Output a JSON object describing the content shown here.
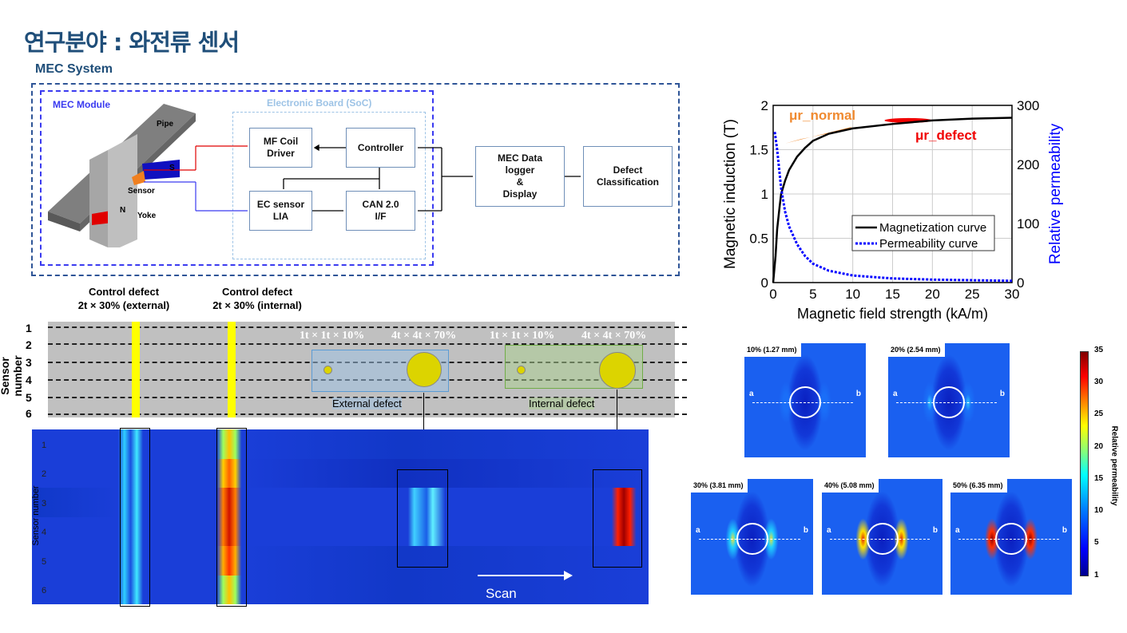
{
  "title": "연구분야 : 와전류 센서",
  "system": {
    "label": "MEC System",
    "module_label": "MEC Module",
    "board_label": "Electronic Board (SoC)",
    "blocks": {
      "mf_coil": "MF Coil\nDriver",
      "controller": "Controller",
      "ec_sensor": "EC sensor\nLIA",
      "can": "CAN 2.0\nI/F",
      "logger": "MEC Data\nlogger\n&\nDisplay",
      "classification": "Defect\nClassification"
    },
    "model_labels": {
      "pipe": "Pipe",
      "sensor": "Sensor",
      "yoke": "Yoke",
      "n": "N",
      "s": "S"
    }
  },
  "defect_layout": {
    "control_external": "Control defect\n2t × 30% (external)",
    "control_internal": "Control defect\n2t × 30% (internal)",
    "sensor_axis_label": "Sensor number",
    "sensors": [
      "1",
      "2",
      "3",
      "4",
      "5",
      "6"
    ],
    "sizes": [
      "1t × 1t × 10%",
      "4t × 4t × 70%",
      "1t × 1t × 10%",
      "4t × 4t × 70%"
    ],
    "external_label": "External defect",
    "internal_label": "Internal defect"
  },
  "scan_map": {
    "ylabel": "Sensor number",
    "rows": [
      "1",
      "2",
      "3",
      "4",
      "5",
      "6"
    ],
    "scan_label": "Scan"
  },
  "chart_data": {
    "type": "line",
    "xlabel": "Magnetic field strength (kA/m)",
    "ylabel": "Magnetic induction (T)",
    "y2label": "Relative permeability",
    "xlim": [
      0,
      30
    ],
    "ylim": [
      0,
      2
    ],
    "y2lim": [
      0,
      300
    ],
    "xticks": [
      "0",
      "5",
      "10",
      "15",
      "20",
      "25",
      "30"
    ],
    "yticks": [
      "0",
      "0.5",
      "1",
      "1.5",
      "2"
    ],
    "y2ticks": [
      "0",
      "100",
      "200",
      "300"
    ],
    "grid": true,
    "legend_placement": "center-right",
    "annotations": [
      "μr_normal",
      "μr_defect"
    ],
    "series": [
      {
        "name": "Magnetization curve",
        "axis": "left",
        "color": "#000000",
        "x": [
          0,
          0.3,
          0.5,
          0.8,
          1,
          1.5,
          2,
          3,
          4,
          5,
          7,
          10,
          15,
          20,
          25,
          30
        ],
        "y": [
          0,
          0.3,
          0.6,
          0.85,
          1,
          1.15,
          1.27,
          1.42,
          1.52,
          1.6,
          1.68,
          1.74,
          1.79,
          1.83,
          1.85,
          1.86
        ]
      },
      {
        "name": "Permeability curve",
        "axis": "right",
        "color": "#0000ff",
        "x": [
          0.2,
          0.5,
          1,
          1.5,
          2,
          3,
          4,
          5,
          7,
          10,
          15,
          20,
          25,
          30
        ],
        "y": [
          255,
          225,
          160,
          120,
          95,
          65,
          45,
          32,
          20,
          12,
          7,
          5,
          4,
          3
        ]
      }
    ]
  },
  "fem": {
    "panels": [
      "10% (1.27 mm)",
      "20% (2.54 mm)",
      "30% (3.81 mm)",
      "40% (5.08 mm)",
      "50% (6.35 mm)"
    ],
    "point_a": "a",
    "point_b": "b",
    "colorbar_label": "Relative permeability",
    "colorbar_ticks": [
      "35",
      "30",
      "25",
      "20",
      "15",
      "10",
      "5",
      "1"
    ]
  }
}
